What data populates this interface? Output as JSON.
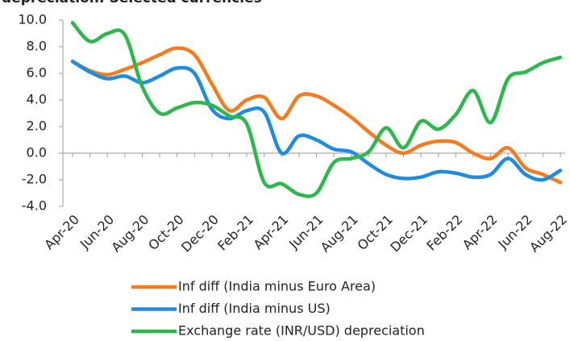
{
  "chart_data": {
    "type": "line",
    "title": "depreciation: Selected currencies",
    "categories": [
      "Apr-20",
      null,
      "Jun-20",
      null,
      "Aug-20",
      null,
      "Oct-20",
      null,
      "Dec-20",
      null,
      "Feb-21",
      null,
      "Apr-21",
      null,
      "Jun-21",
      null,
      "Aug-21",
      null,
      "Oct-21",
      null,
      "Dec-21",
      null,
      "Feb-22",
      null,
      "Apr-22",
      null,
      "Jun-22",
      null,
      "Aug-22"
    ],
    "series": [
      {
        "name": "Inf diff (India minus Euro Area)",
        "color": "#f47b20",
        "values": [
          6.9,
          6.2,
          5.9,
          6.3,
          6.8,
          7.4,
          7.9,
          7.4,
          5.2,
          3.2,
          4.0,
          4.2,
          2.6,
          4.3,
          4.3,
          3.6,
          2.7,
          1.6,
          0.6,
          0.0,
          0.6,
          0.9,
          0.8,
          0.0,
          -0.4,
          0.4,
          -1.1,
          -1.6,
          -2.2
        ]
      },
      {
        "name": "Inf diff (India minus US)",
        "color": "#1f8ce0",
        "values": [
          6.9,
          6.1,
          5.6,
          5.8,
          5.3,
          5.8,
          6.4,
          6.0,
          3.3,
          2.6,
          3.2,
          3.1,
          0.0,
          1.3,
          1.0,
          0.3,
          0.1,
          -0.8,
          -1.6,
          -1.9,
          -1.8,
          -1.4,
          -1.5,
          -1.8,
          -1.6,
          -0.4,
          -1.6,
          -2.0,
          -1.3
        ]
      },
      {
        "name": "Exchange rate (INR/USD) depreciation",
        "color": "#2db84b",
        "values": [
          9.8,
          8.4,
          9.0,
          8.9,
          5.0,
          3.0,
          3.4,
          3.8,
          3.6,
          2.8,
          2.2,
          -2.2,
          -2.3,
          -3.1,
          -3.0,
          -0.7,
          -0.4,
          0.1,
          1.9,
          0.4,
          2.4,
          1.8,
          2.9,
          4.7,
          2.3,
          5.6,
          6.1,
          6.8,
          7.2
        ]
      }
    ],
    "ylim": [
      -4,
      10
    ],
    "yticks": [
      {
        "value": -4,
        "label": "-4.0"
      },
      {
        "value": -2,
        "label": "-2.0"
      },
      {
        "value": 0,
        "label": "0.0"
      },
      {
        "value": 2,
        "label": "2.0"
      },
      {
        "value": 4,
        "label": "4.0"
      },
      {
        "value": 6,
        "label": "6.0"
      },
      {
        "value": 8,
        "label": "8.0"
      },
      {
        "value": 10,
        "label": "10.0"
      }
    ],
    "legend": "bottom"
  }
}
